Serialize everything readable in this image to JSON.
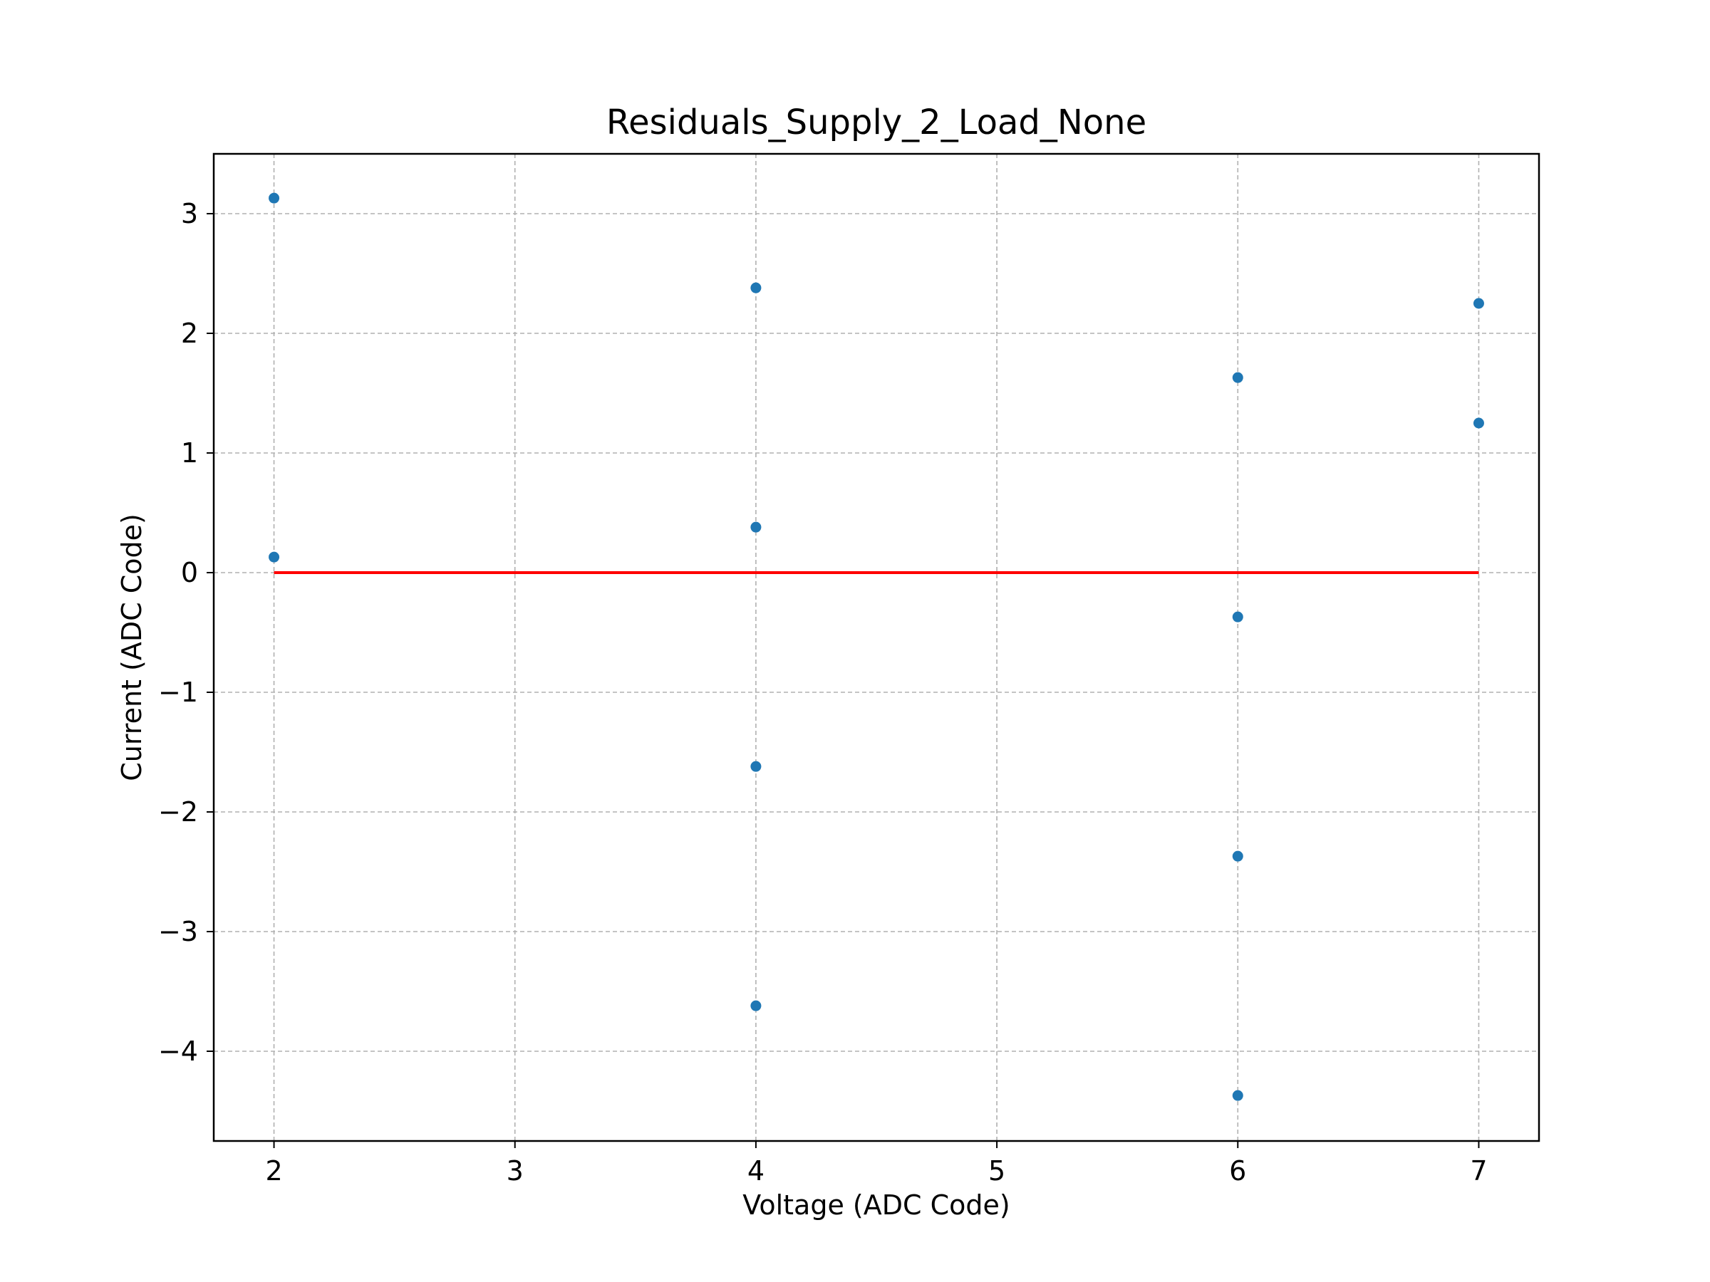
{
  "chart_data": {
    "type": "scatter",
    "title": "Residuals_Supply_2_Load_None",
    "xlabel": "Voltage (ADC Code)",
    "ylabel": "Current (ADC Code)",
    "xlim": [
      1.75,
      7.25
    ],
    "ylim": [
      -4.75,
      3.5
    ],
    "xticks": [
      2,
      3,
      4,
      5,
      6,
      7
    ],
    "xtick_labels": [
      "2",
      "3",
      "4",
      "5",
      "6",
      "7"
    ],
    "yticks": [
      3,
      2,
      1,
      0,
      -1,
      -2,
      -3,
      -4
    ],
    "ytick_labels": [
      "3",
      "2",
      "1",
      "0",
      "−1",
      "−2",
      "−3",
      "−4"
    ],
    "grid": true,
    "series": [
      {
        "marker_color": "#1f77b4",
        "points": [
          {
            "x": 2,
            "y": 3.13
          },
          {
            "x": 2,
            "y": 0.13
          },
          {
            "x": 4,
            "y": 2.38
          },
          {
            "x": 4,
            "y": 0.38
          },
          {
            "x": 4,
            "y": -1.62
          },
          {
            "x": 4,
            "y": -3.62
          },
          {
            "x": 6,
            "y": 1.63
          },
          {
            "x": 6,
            "y": -0.37
          },
          {
            "x": 6,
            "y": -2.37
          },
          {
            "x": 6,
            "y": -4.37
          },
          {
            "x": 7,
            "y": 2.25
          },
          {
            "x": 7,
            "y": 1.25
          }
        ]
      }
    ],
    "reference_line": {
      "y": 0,
      "x_range": [
        2,
        7
      ],
      "color": "#ff0000"
    }
  }
}
